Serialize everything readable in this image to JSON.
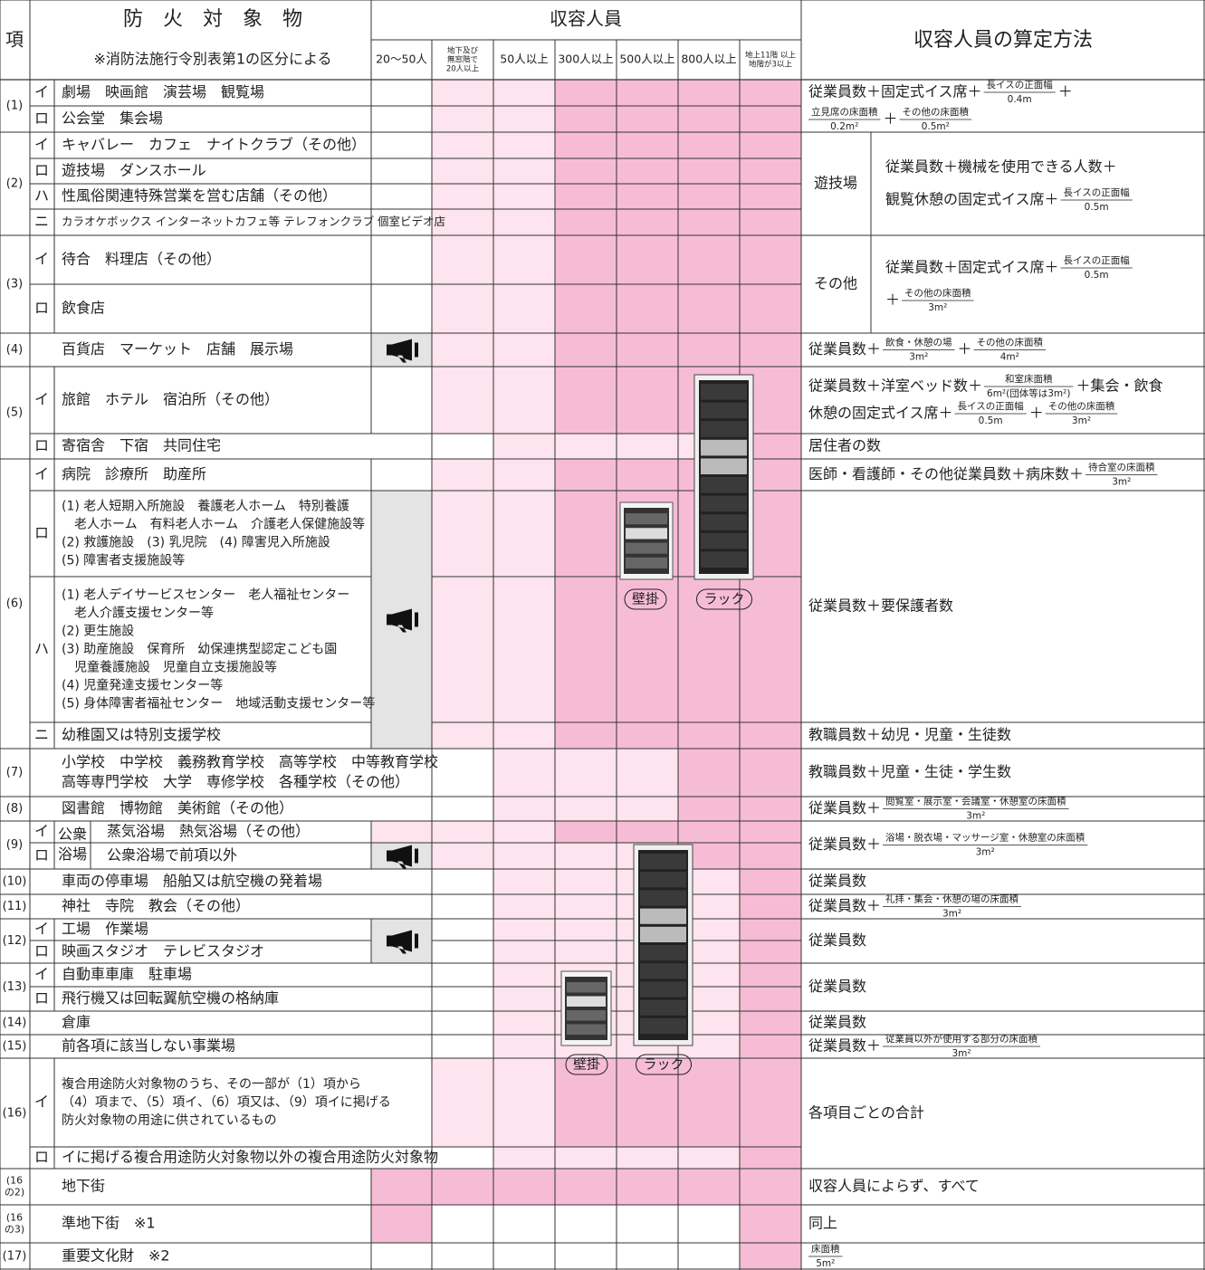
{
  "header": {
    "item": "項",
    "object_title": "防　火　対　象　物",
    "object_note": "※消防法施行令別表第1の区分による",
    "capacity": "収容人員",
    "capacity_cols": [
      [
        "20〜50人"
      ],
      [
        "地下及び",
        "無窓階で",
        "20人以上"
      ],
      [
        "50人以上"
      ],
      [
        "300人以上"
      ],
      [
        "500人以上"
      ],
      [
        "800人以上"
      ],
      [
        "地上11階 以上",
        "地階が3以上"
      ]
    ],
    "method": "収容人員の算定方法"
  },
  "groups": [
    {
      "item": [
        "(1)"
      ],
      "rows": [
        {
          "sub": "イ",
          "name": [
            "劇場　映画館　演芸場　観覧場"
          ]
        },
        {
          "sub": "ロ",
          "name": [
            "公会堂　集会場"
          ]
        }
      ]
    },
    {
      "item": [
        "(2)"
      ],
      "rows": [
        {
          "sub": "イ",
          "name": [
            "キャバレー　カフェ　ナイトクラブ（その他）"
          ]
        },
        {
          "sub": "ロ",
          "name": [
            "遊技場　ダンスホール"
          ]
        },
        {
          "sub": "ハ",
          "name": [
            "性風俗関連特殊営業を営む店舗（その他）"
          ]
        },
        {
          "sub": "ニ",
          "name": [
            "カラオケボックス インターネットカフェ等 テレフォンクラブ 個室ビデオ店"
          ]
        }
      ]
    },
    {
      "item": [
        "(3)"
      ],
      "rows": [
        {
          "sub": "イ",
          "name": [
            "待合　料理店（その他）"
          ]
        },
        {
          "sub": "ロ",
          "name": [
            "飲食店"
          ]
        }
      ]
    },
    {
      "item": [
        "(4)"
      ],
      "rows": [
        {
          "name": [
            "百貨店　マーケット　店舗　展示場"
          ]
        }
      ]
    },
    {
      "item": [
        "(5)"
      ],
      "rows": [
        {
          "sub": "イ",
          "name": [
            "旅館　ホテル　宿泊所（その他）"
          ]
        },
        {
          "sub": "ロ",
          "name": [
            "寄宿舎　下宿　共同住宅"
          ]
        }
      ]
    },
    {
      "item": [
        "(6)"
      ],
      "rows": [
        {
          "sub": "イ",
          "name": [
            "病院　診療所　助産所"
          ]
        },
        {
          "sub": "ロ",
          "name": [
            "(1) 老人短期入所施設　養護老人ホーム　特別養護",
            "　老人ホーム　有料老人ホーム　介護老人保健施設等",
            "(2) 救護施設　(3) 乳児院　(4) 障害児入所施設",
            "(5) 障害者支援施設等"
          ]
        },
        {
          "sub": "ハ",
          "name": [
            "(1) 老人デイサービスセンター　老人福祉センター",
            "　老人介護支援センター等",
            "(2) 更生施設",
            "(3) 助産施設　保育所　幼保連携型認定こども園",
            "　児童養護施設　児童自立支援施設等",
            "(4) 児童発達支援センター等",
            "(5) 身体障害者福祉センター　地域活動支援センター等"
          ]
        },
        {
          "sub": "ニ",
          "name": [
            "幼稚園又は特別支援学校"
          ]
        }
      ]
    },
    {
      "item": [
        "(7)"
      ],
      "rows": [
        {
          "name": [
            "小学校　中学校　義務教育学校　高等学校　中等教育学校",
            "高等専門学校　大学　専修学校　各種学校（その他）"
          ]
        }
      ]
    },
    {
      "item": [
        "(8)"
      ],
      "rows": [
        {
          "name": [
            "図書館　博物館　美術館（その他）"
          ]
        }
      ]
    },
    {
      "item": [
        "(9)"
      ],
      "label": [
        "公衆",
        "浴場"
      ],
      "rows": [
        {
          "sub": "イ",
          "name": [
            "蒸気浴場　熱気浴場（その他）"
          ]
        },
        {
          "sub": "ロ",
          "name": [
            "公衆浴場で前項以外"
          ]
        }
      ]
    },
    {
      "item": [
        "(10)"
      ],
      "rows": [
        {
          "name": [
            "車両の停車場　船舶又は航空機の発着場"
          ]
        }
      ]
    },
    {
      "item": [
        "(11)"
      ],
      "rows": [
        {
          "name": [
            "神社　寺院　教会（その他）"
          ]
        }
      ]
    },
    {
      "item": [
        "(12)"
      ],
      "rows": [
        {
          "sub": "イ",
          "name": [
            "工場　作業場"
          ]
        },
        {
          "sub": "ロ",
          "name": [
            "映画スタジオ　テレビスタジオ"
          ]
        }
      ]
    },
    {
      "item": [
        "(13)"
      ],
      "rows": [
        {
          "sub": "イ",
          "name": [
            "自動車車庫　駐車場"
          ]
        },
        {
          "sub": "ロ",
          "name": [
            "飛行機又は回転翼航空機の格納庫"
          ]
        }
      ]
    },
    {
      "item": [
        "(14)"
      ],
      "rows": [
        {
          "name": [
            "倉庫"
          ]
        }
      ]
    },
    {
      "item": [
        "(15)"
      ],
      "rows": [
        {
          "name": [
            "前各項に該当しない事業場"
          ]
        }
      ]
    },
    {
      "item": [
        "(16)"
      ],
      "rows": [
        {
          "sub": "イ",
          "name": [
            "複合用途防火対象物のうち、その一部が（1）項から",
            "（4）項まで、（5）項イ、（6）項又は、（9）項イに掲げる",
            "防火対象物の用途に供されているもの"
          ]
        },
        {
          "sub": "ロ",
          "name": [
            "イに掲げる複合用途防火対象物以外の複合用途防火対象物"
          ]
        }
      ]
    },
    {
      "item": [
        "(16",
        "の2)"
      ],
      "rows": [
        {
          "name": [
            "地下街"
          ]
        }
      ]
    },
    {
      "item": [
        "(16",
        "の3)"
      ],
      "rows": [
        {
          "name": [
            "準地下街　※1"
          ]
        }
      ]
    },
    {
      "item": [
        "(17)"
      ],
      "rows": [
        {
          "name": [
            "重要文化財　※2"
          ]
        }
      ]
    }
  ],
  "formulas": [
    {
      "lines": [
        [
          "従業員数＋固定式イス席＋",
          {
            "num": "長イスの正面幅",
            "den": "0.4m"
          },
          "＋"
        ],
        [
          {
            "num": "立見席の床面積",
            "den": "0.2m²"
          },
          "＋",
          {
            "num": "その他の床面積",
            "den": "0.5m²"
          }
        ]
      ]
    },
    {
      "label": "遊技場",
      "lines": [
        [
          "従業員数＋機械を使用できる人数＋"
        ],
        [
          "観覧休憩の固定式イス席＋",
          {
            "num": "長イスの正面幅",
            "den": "0.5m"
          }
        ]
      ]
    },
    {
      "label": "その他",
      "lines": [
        [
          "従業員数＋固定式イス席＋",
          {
            "num": "長イスの正面幅",
            "den": "0.5m"
          }
        ],
        [
          "＋",
          {
            "num": "その他の床面積",
            "den": "3m²"
          }
        ]
      ]
    },
    {
      "lines": [
        [
          "従業員数＋",
          {
            "num": "飲食・休憩の場",
            "den": "3m²"
          },
          "＋",
          {
            "num": "その他の床面積",
            "den": "4m²"
          }
        ]
      ]
    },
    {
      "lines": [
        [
          "従業員数＋洋室ベッド数＋",
          {
            "num": "和室床面積",
            "den": "6m²(団体等は3m²)"
          },
          "＋集会・飲食"
        ],
        [
          "休憩の固定式イス席＋",
          {
            "num": "長イスの正面幅",
            "den": "0.5m"
          },
          "＋",
          {
            "num": "その他の床面積",
            "den": "3m²"
          }
        ]
      ]
    },
    {
      "lines": [
        [
          "居住者の数"
        ]
      ]
    },
    {
      "lines": [
        [
          "医師・看護師・その他従業員数＋病床数＋",
          {
            "num": "待合室の床面積",
            "den": "3m²"
          }
        ]
      ]
    },
    {
      "lines": [
        [
          "従業員数＋要保護者数"
        ]
      ]
    },
    {
      "lines": [
        [
          "教職員数＋幼児・児童・生徒数"
        ]
      ]
    },
    {
      "lines": [
        [
          "教職員数＋児童・生徒・学生数"
        ]
      ]
    },
    {
      "lines": [
        [
          "従業員数＋",
          {
            "num": "閲覧室・展示室・会議室・休憩室の床面積",
            "den": "3m²"
          }
        ]
      ]
    },
    {
      "lines": [
        [
          "従業員数＋",
          {
            "num": "浴場・脱衣場・マッサージ室・休憩室の床面積",
            "den": "3m²"
          }
        ]
      ]
    },
    {
      "lines": [
        [
          "従業員数"
        ]
      ]
    },
    {
      "lines": [
        [
          "従業員数＋",
          {
            "num": "礼拝・集会・休憩の場の床面積",
            "den": "3m²"
          }
        ]
      ]
    },
    {
      "lines": [
        [
          "従業員数"
        ]
      ]
    },
    {
      "lines": [
        [
          "従業員数"
        ]
      ]
    },
    {
      "lines": [
        [
          "従業員数"
        ]
      ]
    },
    {
      "lines": [
        [
          "従業員数＋",
          {
            "num": "従業員以外が使用する部分の床面積",
            "den": "3m²"
          }
        ]
      ]
    },
    {
      "lines": [
        [
          "各項目ごとの合計"
        ]
      ]
    },
    {
      "lines": [
        [
          "収容人員によらず、すべて"
        ]
      ]
    },
    {
      "lines": [
        [
          "同上"
        ]
      ]
    },
    {
      "lines": [
        [
          {
            "num": "床面積",
            "den": "5m²"
          }
        ]
      ]
    }
  ],
  "equipment": [
    "壁掛",
    "ラック",
    "壁掛",
    "ラック"
  ]
}
